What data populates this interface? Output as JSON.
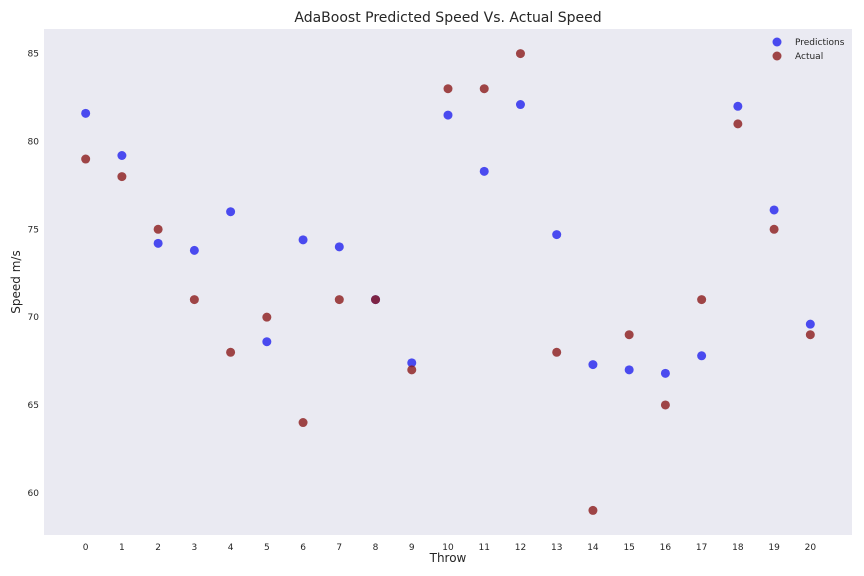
{
  "chart_data": {
    "type": "scatter",
    "title": "AdaBoost Predicted Speed Vs. Actual Speed",
    "xlabel": "Throw",
    "ylabel": "Speed m/s",
    "x": [
      0,
      1,
      2,
      3,
      4,
      5,
      6,
      7,
      8,
      9,
      10,
      11,
      12,
      13,
      14,
      15,
      16,
      17,
      18,
      19,
      20
    ],
    "x_ticks": [
      "0",
      "1",
      "2",
      "3",
      "4",
      "5",
      "6",
      "7",
      "8",
      "9",
      "10",
      "11",
      "12",
      "13",
      "14",
      "15",
      "16",
      "17",
      "18",
      "19",
      "20"
    ],
    "y_ticks": [
      "60",
      "65",
      "70",
      "75",
      "80",
      "85"
    ],
    "xlim": [
      -1.15,
      21.15
    ],
    "ylim": [
      57.6,
      86.4
    ],
    "grid": false,
    "legend_position": "top-right",
    "series": [
      {
        "name": "Predictions",
        "color": "#2222ee",
        "values": [
          81.6,
          79.2,
          74.2,
          73.8,
          76.0,
          68.6,
          74.4,
          74.0,
          71.0,
          67.4,
          81.5,
          78.3,
          82.1,
          74.7,
          67.3,
          67.0,
          66.8,
          67.8,
          82.0,
          76.1,
          69.6
        ]
      },
      {
        "name": "Actual",
        "color": "#8b1a1a",
        "values": [
          79,
          78,
          75,
          71,
          68,
          70,
          64,
          71,
          71,
          67,
          83,
          83,
          85,
          68,
          59,
          69,
          65,
          71,
          81,
          75,
          69
        ]
      }
    ]
  }
}
